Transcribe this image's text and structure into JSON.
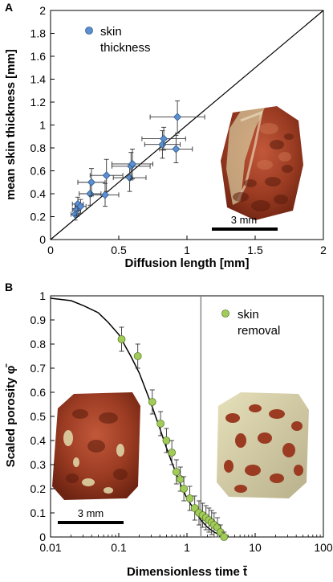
{
  "chart_data": [
    {
      "panel": "A",
      "type": "scatter",
      "xlabel": "Diffusion length [mm]",
      "ylabel": "mean skin thickness [mm]",
      "xlim": [
        0,
        2
      ],
      "ylim": [
        0,
        2
      ],
      "xticks": [
        "0",
        "0.5",
        "1",
        "1.5",
        "2"
      ],
      "yticks": [
        "0",
        "0.2",
        "0.4",
        "0.6",
        "0.8",
        "1",
        "1.2",
        "1.4",
        "1.6",
        "1.8",
        "2"
      ],
      "grid": false,
      "legend": "top-left",
      "series": [
        {
          "name": "skin thickness",
          "color": "#5b8fd0",
          "points": [
            {
              "x": 0.18,
              "y": 0.22,
              "xerr": 0.03,
              "yerr": 0.05
            },
            {
              "x": 0.19,
              "y": 0.26,
              "xerr": 0.03,
              "yerr": 0.05
            },
            {
              "x": 0.2,
              "y": 0.31,
              "xerr": 0.04,
              "yerr": 0.06
            },
            {
              "x": 0.22,
              "y": 0.29,
              "xerr": 0.04,
              "yerr": 0.06
            },
            {
              "x": 0.29,
              "y": 0.4,
              "xerr": 0.08,
              "yerr": 0.1
            },
            {
              "x": 0.3,
              "y": 0.5,
              "xerr": 0.1,
              "yerr": 0.12
            },
            {
              "x": 0.4,
              "y": 0.39,
              "xerr": 0.1,
              "yerr": 0.1
            },
            {
              "x": 0.41,
              "y": 0.56,
              "xerr": 0.12,
              "yerr": 0.14
            },
            {
              "x": 0.58,
              "y": 0.54,
              "xerr": 0.12,
              "yerr": 0.12
            },
            {
              "x": 0.59,
              "y": 0.64,
              "xerr": 0.14,
              "yerr": 0.12
            },
            {
              "x": 0.6,
              "y": 0.66,
              "xerr": 0.15,
              "yerr": 0.13
            },
            {
              "x": 0.82,
              "y": 0.83,
              "xerr": 0.13,
              "yerr": 0.12
            },
            {
              "x": 0.83,
              "y": 0.88,
              "xerr": 0.16,
              "yerr": 0.1
            },
            {
              "x": 0.92,
              "y": 0.79,
              "xerr": 0.12,
              "yerr": 0.12
            },
            {
              "x": 0.93,
              "y": 1.07,
              "xerr": 0.2,
              "yerr": 0.14
            }
          ]
        }
      ],
      "reference_line": {
        "x": [
          0,
          2
        ],
        "y": [
          0,
          2
        ]
      },
      "scalebar_label": "3 mm"
    },
    {
      "panel": "B",
      "type": "scatter",
      "xlabel": "Dimensionless time t̄",
      "ylabel": "Scaled porosity φ̄",
      "xscale": "log",
      "xlim": [
        0.01,
        100
      ],
      "ylim": [
        0,
        1
      ],
      "xticks": [
        "0.01",
        "0.1",
        "1",
        "10",
        "100"
      ],
      "yticks": [
        "0",
        "0.1",
        "0.2",
        "0.3",
        "0.4",
        "0.5",
        "0.6",
        "0.7",
        "0.8",
        "0.9",
        "1"
      ],
      "grid": false,
      "legend": "top-right",
      "vertical_line_x": 1.6,
      "series": [
        {
          "name": "skin removal",
          "color": "#a2cc5a",
          "points": [
            {
              "x": 0.11,
              "y": 0.82,
              "yerr": 0.05
            },
            {
              "x": 0.19,
              "y": 0.75,
              "yerr": 0.05
            },
            {
              "x": 0.31,
              "y": 0.56,
              "yerr": 0.05
            },
            {
              "x": 0.41,
              "y": 0.47,
              "yerr": 0.05
            },
            {
              "x": 0.5,
              "y": 0.4,
              "yerr": 0.05
            },
            {
              "x": 0.6,
              "y": 0.35,
              "yerr": 0.05
            },
            {
              "x": 0.7,
              "y": 0.27,
              "yerr": 0.05
            },
            {
              "x": 0.8,
              "y": 0.24,
              "yerr": 0.05
            },
            {
              "x": 0.9,
              "y": 0.2,
              "yerr": 0.05
            },
            {
              "x": 1.1,
              "y": 0.16,
              "yerr": 0.05
            },
            {
              "x": 1.3,
              "y": 0.12,
              "yerr": 0.05
            },
            {
              "x": 1.5,
              "y": 0.1,
              "yerr": 0.05
            },
            {
              "x": 1.7,
              "y": 0.09,
              "yerr": 0.05
            },
            {
              "x": 1.9,
              "y": 0.08,
              "yerr": 0.05
            },
            {
              "x": 2.1,
              "y": 0.07,
              "yerr": 0.05
            },
            {
              "x": 2.3,
              "y": 0.06,
              "yerr": 0.05
            },
            {
              "x": 2.5,
              "y": 0.05,
              "yerr": 0.05
            },
            {
              "x": 2.8,
              "y": 0.04,
              "yerr": 0.04
            },
            {
              "x": 3.1,
              "y": 0.02,
              "yerr": 0.03
            },
            {
              "x": 3.5,
              "y": 0.0,
              "yerr": 0.02
            }
          ]
        }
      ],
      "fit_curve": {
        "x": [
          0.01,
          0.02,
          0.03,
          0.05,
          0.07,
          0.1,
          0.15,
          0.2,
          0.3,
          0.4,
          0.5,
          0.6,
          0.8,
          1.0,
          1.3,
          1.6,
          2.0,
          2.5,
          3.0,
          3.5
        ],
        "y": [
          0.99,
          0.98,
          0.96,
          0.93,
          0.89,
          0.84,
          0.75,
          0.68,
          0.55,
          0.45,
          0.37,
          0.31,
          0.22,
          0.16,
          0.11,
          0.07,
          0.04,
          0.02,
          0.01,
          0.0
        ]
      },
      "scalebar_label": "3 mm"
    }
  ]
}
